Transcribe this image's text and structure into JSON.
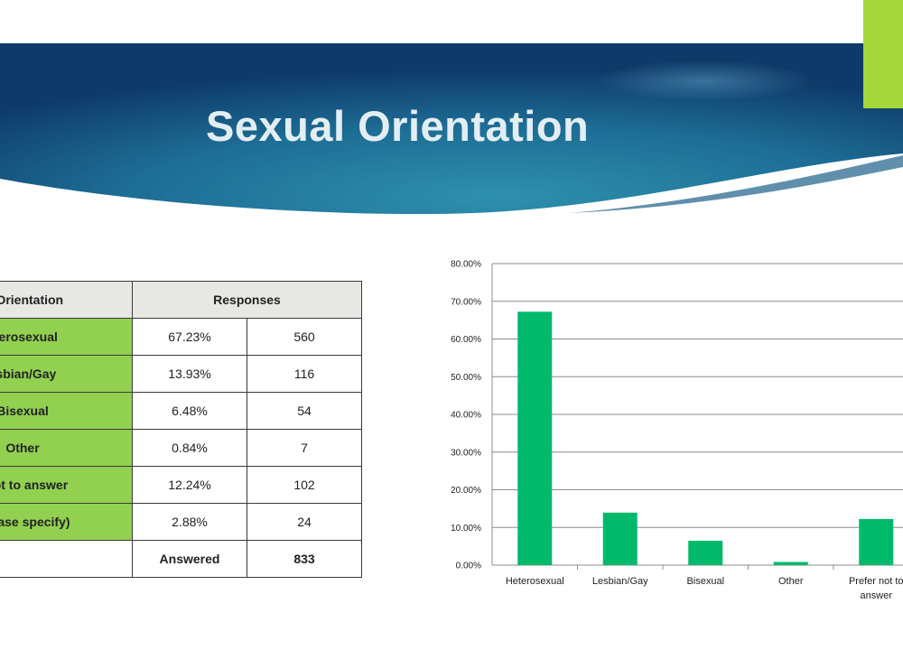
{
  "slide": {
    "title": "Sexual Orientation",
    "colors": {
      "banner_dark": "#0f3b66",
      "banner_mid": "#2d8aa8",
      "accent": "#a5d63a",
      "category_fill": "#92d050",
      "bar": "#00b96b"
    }
  },
  "table": {
    "headers": [
      "al Orientation",
      "Responses"
    ],
    "rows": [
      {
        "label": "eterosexual",
        "percent": "67.23%",
        "count": "560"
      },
      {
        "label": "esbian/Gay",
        "percent": "13.93%",
        "count": "116"
      },
      {
        "label": "Bisexual",
        "percent": "6.48%",
        "count": "54"
      },
      {
        "label": "Other",
        "percent": "0.84%",
        "count": "7"
      },
      {
        "label": "r not to answer",
        "percent": "12.24%",
        "count": "102"
      },
      {
        "label": "(please specify)",
        "percent": "2.88%",
        "count": "24"
      }
    ],
    "footer": {
      "label": "Answered",
      "value": "833"
    }
  },
  "chart_data": {
    "type": "bar",
    "categories": [
      "Heterosexual",
      "Lesbian/Gay",
      "Bisexual",
      "Other",
      "Prefer not to answer"
    ],
    "category_label_lines": [
      [
        "Heterosexual"
      ],
      [
        "Lesbian/Gay"
      ],
      [
        "Bisexual"
      ],
      [
        "Other"
      ],
      [
        "Prefer not to",
        "answer"
      ]
    ],
    "values": [
      67.23,
      13.93,
      6.48,
      0.84,
      12.24
    ],
    "yticks": [
      "0.00%",
      "10.00%",
      "20.00%",
      "30.00%",
      "40.00%",
      "50.00%",
      "60.00%",
      "70.00%",
      "80.00%"
    ],
    "ylim": [
      0,
      80
    ],
    "grid": true,
    "legend": "none",
    "title": "",
    "xlabel": "",
    "ylabel": "",
    "bar_color": "#00b96b"
  }
}
